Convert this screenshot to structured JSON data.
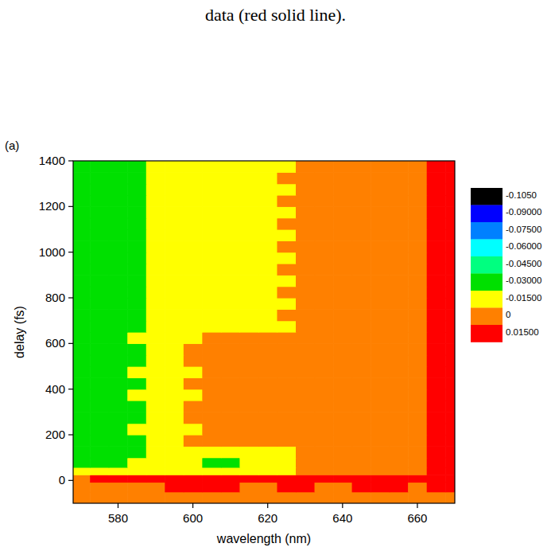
{
  "caption": "data (red solid line).",
  "chart_data": {
    "type": "heatmap",
    "panel_label": "(a)",
    "x_label": "wavelength (nm)",
    "y_label": "delay (fs)",
    "xlim": [
      568,
      670
    ],
    "xticks": [
      580,
      600,
      620,
      640,
      660
    ],
    "ylim": [
      -100,
      1400
    ],
    "yticks": [
      0,
      200,
      400,
      600,
      800,
      1000,
      1200,
      1400
    ],
    "x": [
      570,
      575,
      580,
      585,
      590,
      595,
      600,
      605,
      610,
      615,
      620,
      625,
      630,
      635,
      640,
      645,
      650,
      655,
      660,
      665,
      670
    ],
    "y": [
      -75,
      -25,
      10,
      40,
      75,
      125,
      175,
      225,
      275,
      325,
      375,
      425,
      475,
      525,
      575,
      625,
      675,
      725,
      775,
      825,
      875,
      925,
      975,
      1025,
      1075,
      1125,
      1175,
      1225,
      1275,
      1325,
      1375
    ],
    "values": [
      [
        0.007,
        0.007,
        0.007,
        0.007,
        0.007,
        0.007,
        0.007,
        0.007,
        0.007,
        0.007,
        0.007,
        0.007,
        0.007,
        0.007,
        0.007,
        0.007,
        0.007,
        0.007,
        0.007,
        0.007,
        0.007
      ],
      [
        0.007,
        0.007,
        0.007,
        0.007,
        0.007,
        0.02,
        0.02,
        0.02,
        0.02,
        0.007,
        0.007,
        0.02,
        0.02,
        0.007,
        0.007,
        0.02,
        0.02,
        0.02,
        0.007,
        0.02,
        0.02
      ],
      [
        0.007,
        0.02,
        0.02,
        0.02,
        0.02,
        0.02,
        0.02,
        0.02,
        0.02,
        0.02,
        0.02,
        0.02,
        0.02,
        0.02,
        0.02,
        0.02,
        0.02,
        0.02,
        0.02,
        0.02,
        0.02
      ],
      [
        -0.008,
        -0.008,
        -0.008,
        -0.008,
        -0.008,
        -0.008,
        -0.008,
        -0.008,
        -0.008,
        -0.008,
        -0.008,
        -0.008,
        0.007,
        0.007,
        0.007,
        0.007,
        0.007,
        0.007,
        0.007,
        0.02,
        0.02
      ],
      [
        -0.02,
        -0.02,
        -0.02,
        -0.008,
        -0.008,
        -0.008,
        -0.008,
        -0.02,
        -0.02,
        -0.008,
        -0.008,
        -0.008,
        0.007,
        0.007,
        0.007,
        0.007,
        0.007,
        0.007,
        0.007,
        0.02,
        0.02
      ],
      [
        -0.02,
        -0.02,
        -0.02,
        -0.02,
        -0.008,
        -0.008,
        -0.008,
        -0.008,
        -0.008,
        -0.008,
        -0.008,
        -0.008,
        0.007,
        0.007,
        0.007,
        0.007,
        0.007,
        0.007,
        0.007,
        0.02,
        0.02
      ],
      [
        -0.02,
        -0.02,
        -0.02,
        -0.02,
        -0.008,
        -0.008,
        0.007,
        0.007,
        0.007,
        0.007,
        0.007,
        0.007,
        0.007,
        0.007,
        0.007,
        0.007,
        0.007,
        0.007,
        0.007,
        0.02,
        0.02
      ],
      [
        -0.02,
        -0.02,
        -0.02,
        -0.008,
        -0.008,
        -0.008,
        -0.008,
        0.007,
        0.007,
        0.007,
        0.007,
        0.007,
        0.007,
        0.007,
        0.007,
        0.007,
        0.007,
        0.007,
        0.007,
        0.02,
        0.02
      ],
      [
        -0.02,
        -0.02,
        -0.02,
        -0.02,
        -0.008,
        -0.008,
        0.007,
        0.007,
        0.007,
        0.007,
        0.007,
        0.007,
        0.007,
        0.007,
        0.007,
        0.007,
        0.007,
        0.007,
        0.007,
        0.02,
        0.02
      ],
      [
        -0.02,
        -0.02,
        -0.02,
        -0.02,
        -0.008,
        -0.008,
        0.007,
        0.007,
        0.007,
        0.007,
        0.007,
        0.007,
        0.007,
        0.007,
        0.007,
        0.007,
        0.007,
        0.007,
        0.007,
        0.02,
        0.02
      ],
      [
        -0.02,
        -0.02,
        -0.02,
        -0.008,
        -0.008,
        -0.008,
        -0.008,
        0.007,
        0.007,
        0.007,
        0.007,
        0.007,
        0.007,
        0.007,
        0.007,
        0.007,
        0.007,
        0.007,
        0.007,
        0.02,
        0.02
      ],
      [
        -0.02,
        -0.02,
        -0.02,
        -0.02,
        -0.008,
        -0.008,
        0.007,
        0.007,
        0.007,
        0.007,
        0.007,
        0.007,
        0.007,
        0.007,
        0.007,
        0.007,
        0.007,
        0.007,
        0.007,
        0.02,
        0.02
      ],
      [
        -0.02,
        -0.02,
        -0.02,
        -0.008,
        -0.008,
        -0.008,
        -0.008,
        0.007,
        0.007,
        0.007,
        0.007,
        0.007,
        0.007,
        0.007,
        0.007,
        0.007,
        0.007,
        0.007,
        0.007,
        0.02,
        0.02
      ],
      [
        -0.02,
        -0.02,
        -0.02,
        -0.02,
        -0.008,
        -0.008,
        0.007,
        0.007,
        0.007,
        0.007,
        0.007,
        0.007,
        0.007,
        0.007,
        0.007,
        0.007,
        0.007,
        0.007,
        0.007,
        0.02,
        0.02
      ],
      [
        -0.02,
        -0.02,
        -0.02,
        -0.02,
        -0.008,
        -0.008,
        0.007,
        0.007,
        0.007,
        0.007,
        0.007,
        0.007,
        0.007,
        0.007,
        0.007,
        0.007,
        0.007,
        0.007,
        0.007,
        0.02,
        0.02
      ],
      [
        -0.02,
        -0.02,
        -0.02,
        -0.008,
        -0.008,
        -0.008,
        -0.008,
        0.007,
        0.007,
        0.007,
        0.007,
        0.007,
        0.007,
        0.007,
        0.007,
        0.007,
        0.007,
        0.007,
        0.007,
        0.02,
        0.02
      ],
      [
        -0.02,
        -0.02,
        -0.02,
        -0.02,
        -0.008,
        -0.008,
        -0.008,
        -0.008,
        -0.008,
        -0.008,
        -0.008,
        -0.008,
        0.007,
        0.007,
        0.007,
        0.007,
        0.007,
        0.007,
        0.007,
        0.02,
        0.02
      ],
      [
        -0.02,
        -0.02,
        -0.02,
        -0.02,
        -0.008,
        -0.008,
        -0.008,
        -0.008,
        -0.008,
        -0.008,
        -0.008,
        0.007,
        0.007,
        0.007,
        0.007,
        0.007,
        0.007,
        0.007,
        0.007,
        0.02,
        0.02
      ],
      [
        -0.02,
        -0.02,
        -0.02,
        -0.02,
        -0.008,
        -0.008,
        -0.008,
        -0.008,
        -0.008,
        -0.008,
        -0.008,
        -0.008,
        0.007,
        0.007,
        0.007,
        0.007,
        0.007,
        0.007,
        0.007,
        0.02,
        0.02
      ],
      [
        -0.02,
        -0.02,
        -0.02,
        -0.02,
        -0.008,
        -0.008,
        -0.008,
        -0.008,
        -0.008,
        -0.008,
        -0.008,
        0.007,
        0.007,
        0.007,
        0.007,
        0.007,
        0.007,
        0.007,
        0.007,
        0.02,
        0.02
      ],
      [
        -0.02,
        -0.02,
        -0.02,
        -0.02,
        -0.008,
        -0.008,
        -0.008,
        -0.008,
        -0.008,
        -0.008,
        -0.008,
        -0.008,
        0.007,
        0.007,
        0.007,
        0.007,
        0.007,
        0.007,
        0.007,
        0.02,
        0.02
      ],
      [
        -0.02,
        -0.02,
        -0.02,
        -0.02,
        -0.008,
        -0.008,
        -0.008,
        -0.008,
        -0.008,
        -0.008,
        -0.008,
        0.007,
        0.007,
        0.007,
        0.007,
        0.007,
        0.007,
        0.007,
        0.007,
        0.02,
        0.02
      ],
      [
        -0.02,
        -0.02,
        -0.02,
        -0.02,
        -0.008,
        -0.008,
        -0.008,
        -0.008,
        -0.008,
        -0.008,
        -0.008,
        -0.008,
        0.007,
        0.007,
        0.007,
        0.007,
        0.007,
        0.007,
        0.007,
        0.02,
        0.02
      ],
      [
        -0.02,
        -0.02,
        -0.02,
        -0.02,
        -0.008,
        -0.008,
        -0.008,
        -0.008,
        -0.008,
        -0.008,
        -0.008,
        0.007,
        0.007,
        0.007,
        0.007,
        0.007,
        0.007,
        0.007,
        0.007,
        0.02,
        0.02
      ],
      [
        -0.02,
        -0.02,
        -0.02,
        -0.02,
        -0.008,
        -0.008,
        -0.008,
        -0.008,
        -0.008,
        -0.008,
        -0.008,
        -0.008,
        0.007,
        0.007,
        0.007,
        0.007,
        0.007,
        0.007,
        0.007,
        0.02,
        0.02
      ],
      [
        -0.02,
        -0.02,
        -0.02,
        -0.02,
        -0.008,
        -0.008,
        -0.008,
        -0.008,
        -0.008,
        -0.008,
        -0.008,
        0.007,
        0.007,
        0.007,
        0.007,
        0.007,
        0.007,
        0.007,
        0.007,
        0.02,
        0.02
      ],
      [
        -0.02,
        -0.02,
        -0.02,
        -0.02,
        -0.008,
        -0.008,
        -0.008,
        -0.008,
        -0.008,
        -0.008,
        -0.008,
        -0.008,
        0.007,
        0.007,
        0.007,
        0.007,
        0.007,
        0.007,
        0.007,
        0.02,
        0.02
      ],
      [
        -0.02,
        -0.02,
        -0.02,
        -0.02,
        -0.008,
        -0.008,
        -0.008,
        -0.008,
        -0.008,
        -0.008,
        -0.008,
        0.007,
        0.007,
        0.007,
        0.007,
        0.007,
        0.007,
        0.007,
        0.007,
        0.02,
        0.02
      ],
      [
        -0.02,
        -0.02,
        -0.02,
        -0.02,
        -0.008,
        -0.008,
        -0.008,
        -0.008,
        -0.008,
        -0.008,
        -0.008,
        -0.008,
        0.007,
        0.007,
        0.007,
        0.007,
        0.007,
        0.007,
        0.007,
        0.02,
        0.02
      ],
      [
        -0.02,
        -0.02,
        -0.02,
        -0.02,
        -0.008,
        -0.008,
        -0.008,
        -0.008,
        -0.008,
        -0.008,
        -0.008,
        0.007,
        0.007,
        0.007,
        0.007,
        0.007,
        0.007,
        0.007,
        0.007,
        0.02,
        0.02
      ],
      [
        -0.02,
        -0.02,
        -0.02,
        -0.02,
        -0.008,
        -0.008,
        -0.008,
        -0.008,
        -0.008,
        -0.008,
        -0.008,
        -0.008,
        0.007,
        0.007,
        0.007,
        0.007,
        0.007,
        0.007,
        0.007,
        0.02,
        0.02
      ]
    ],
    "colorbar": {
      "levels": [
        {
          "value": -0.105,
          "label": "-0.1050"
        },
        {
          "value": -0.09,
          "label": "-0.09000"
        },
        {
          "value": -0.075,
          "label": "-0.07500"
        },
        {
          "value": -0.06,
          "label": "-0.06000"
        },
        {
          "value": -0.045,
          "label": "-0.04500"
        },
        {
          "value": -0.03,
          "label": "-0.03000"
        },
        {
          "value": -0.015,
          "label": "-0.01500"
        },
        0,
        {
          "value": 0.015,
          "label": "0.01500"
        }
      ],
      "colors": [
        "#000000",
        "#0000ff",
        "#0080ff",
        "#00ffff",
        "#00ff80",
        "#00e000",
        "#ffff00",
        "#ff8000",
        "#ff0000"
      ]
    }
  }
}
